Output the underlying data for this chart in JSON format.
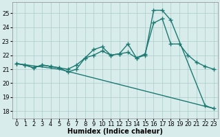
{
  "xlabel": "Humidex (Indice chaleur)",
  "ylabel": "",
  "xlim": [
    -0.5,
    23.5
  ],
  "ylim": [
    17.5,
    25.8
  ],
  "xticks": [
    0,
    1,
    2,
    3,
    4,
    5,
    6,
    7,
    8,
    9,
    10,
    11,
    12,
    13,
    14,
    15,
    16,
    17,
    18,
    19,
    20,
    21,
    22,
    23
  ],
  "yticks": [
    18,
    19,
    20,
    21,
    22,
    23,
    24,
    25
  ],
  "bg_color": "#d8eceb",
  "line_color": "#1a7870",
  "series": {
    "top": {
      "x": [
        0,
        1,
        2,
        3,
        4,
        5,
        6,
        7,
        8,
        9,
        10,
        11,
        12,
        13,
        14,
        15,
        16,
        17,
        18,
        22,
        23
      ],
      "y": [
        21.4,
        21.3,
        21.1,
        21.3,
        21.2,
        21.1,
        20.8,
        21.0,
        21.8,
        22.4,
        22.6,
        22.0,
        22.1,
        22.8,
        21.8,
        22.0,
        25.2,
        25.2,
        24.5,
        18.4,
        18.2
      ]
    },
    "mid": {
      "x": [
        0,
        1,
        2,
        3,
        4,
        5,
        6,
        7,
        8,
        9,
        10,
        11,
        12,
        13,
        14,
        15,
        16,
        17,
        18,
        19,
        20,
        21,
        22,
        23
      ],
      "y": [
        21.4,
        21.3,
        21.1,
        21.3,
        21.2,
        21.1,
        21.0,
        21.3,
        21.8,
        22.0,
        22.3,
        22.0,
        22.1,
        22.2,
        21.8,
        22.1,
        24.3,
        24.6,
        22.8,
        22.8,
        22.0,
        21.5,
        21.2,
        21.0
      ]
    },
    "bot": {
      "x": [
        0,
        5,
        23
      ],
      "y": [
        21.4,
        21.0,
        18.2
      ]
    }
  },
  "marker": "+",
  "markersize": 4,
  "linewidth": 1.0,
  "grid_color": "#a8ccc9",
  "tick_fontsize": 6,
  "label_fontsize": 7
}
